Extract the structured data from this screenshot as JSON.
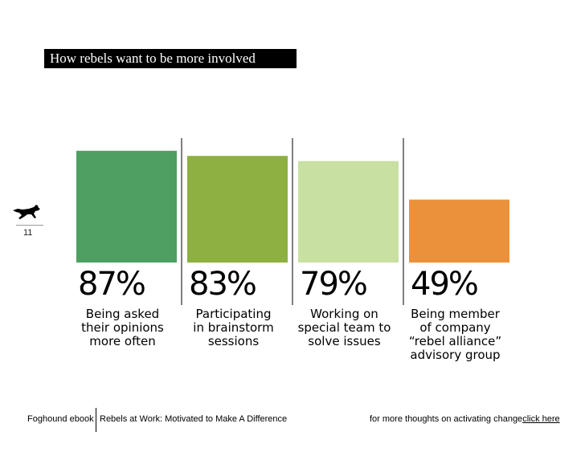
{
  "slide": {
    "title": "How rebels want to be more involved",
    "page_number": "11",
    "footer": {
      "left": "Foghound ebook",
      "middle": "Rebels at Work: Motivated to Make A Difference",
      "right_text": "for more thoughts on activating change",
      "link_text": "click here"
    }
  },
  "chart_data": {
    "type": "bar",
    "title": "How rebels want to be more involved",
    "xlabel": "",
    "ylabel": "",
    "ylim": [
      0,
      100
    ],
    "grid": false,
    "legend": "none",
    "categories": [
      [
        "Being asked",
        "their opinions",
        "more often"
      ],
      [
        "Participating",
        "in brainstorm",
        "sessions"
      ],
      [
        "Working on",
        "special team to",
        "solve issues"
      ],
      [
        "Being member",
        "of company",
        "“rebel alliance”",
        "advisory group"
      ]
    ],
    "values": [
      87,
      83,
      79,
      49
    ],
    "value_labels": [
      "87%",
      "83%",
      "79%",
      "49%"
    ],
    "colors": [
      "#4f9f62",
      "#8db041",
      "#c8e0a2",
      "#ec913b"
    ]
  }
}
